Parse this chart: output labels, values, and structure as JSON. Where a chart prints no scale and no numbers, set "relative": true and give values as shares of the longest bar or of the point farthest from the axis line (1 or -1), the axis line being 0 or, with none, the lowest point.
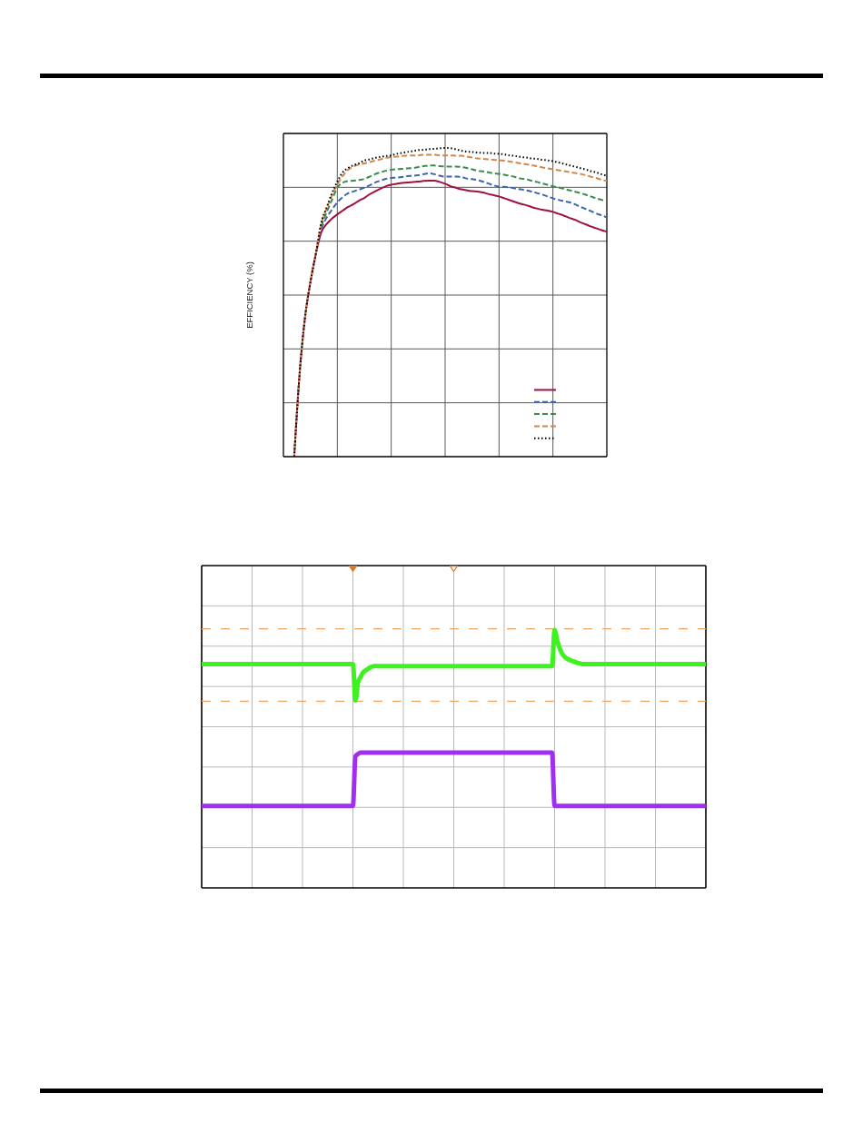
{
  "chart_data": [
    {
      "type": "line",
      "ylabel": "EFFICIENCY (%)",
      "relative": true,
      "grid": true,
      "categories": [
        null,
        null,
        null,
        null,
        null,
        null,
        null,
        null,
        null,
        null,
        null,
        null,
        null,
        null,
        null,
        null,
        null,
        null,
        null,
        null,
        null,
        null,
        null,
        null,
        null,
        null,
        null,
        null,
        null,
        null,
        null,
        null,
        null,
        null,
        null,
        null,
        null,
        null,
        null,
        null,
        null,
        null,
        null,
        null,
        null,
        null,
        null,
        null,
        null,
        null,
        null,
        null,
        null,
        null,
        null,
        null,
        null,
        null,
        null,
        null,
        null
      ],
      "series": [
        {
          "color": "#a01040",
          "line_style": "solid",
          "values": [
            null,
            null,
            0,
            0.268,
            0.45,
            0.565,
            0.656,
            0.726,
            0.753,
            0.771,
            0.785,
            0.797,
            0.809,
            0.818,
            0.829,
            0.838,
            0.85,
            0.859,
            0.868,
            0.876,
            0.881,
            0.884,
            0.887,
            0.888,
            0.89,
            0.891,
            0.893,
            0.894,
            0.894,
            0.89,
            0.884,
            0.876,
            0.871,
            0.866,
            0.863,
            0.86,
            0.859,
            0.856,
            0.851,
            0.847,
            0.843,
            0.837,
            0.831,
            0.825,
            0.819,
            0.815,
            0.809,
            0.804,
            0.8,
            0.797,
            0.793,
            0.787,
            0.781,
            0.774,
            0.768,
            0.76,
            0.753,
            0.746,
            0.74,
            0.734,
            0.729
          ]
        },
        {
          "color": "#3b64ad",
          "line_style": "dashed",
          "values": [
            null,
            null,
            null,
            null,
            null,
            null,
            null,
            0.738,
            0.774,
            0.8,
            0.824,
            0.841,
            0.853,
            0.859,
            0.865,
            0.871,
            0.879,
            0.888,
            0.894,
            0.9,
            0.903,
            0.904,
            0.906,
            0.909,
            0.91,
            0.912,
            0.915,
            0.918,
            0.915,
            0.91,
            0.907,
            0.907,
            0.907,
            0.906,
            0.901,
            0.899,
            0.896,
            0.891,
            0.885,
            0.879,
            0.875,
            0.874,
            0.872,
            0.869,
            0.866,
            0.863,
            0.859,
            0.854,
            0.849,
            0.843,
            0.837,
            0.832,
            0.828,
            0.824,
            0.818,
            0.81,
            0.803,
            0.796,
            0.788,
            0.782,
            0.775
          ]
        },
        {
          "color": "#3a8c4c",
          "line_style": "dashed",
          "values": [
            null,
            null,
            null,
            null,
            null,
            null,
            null,
            0.747,
            0.791,
            0.832,
            0.871,
            0.888,
            0.893,
            0.894,
            0.896,
            0.9,
            0.907,
            0.915,
            0.921,
            0.926,
            0.929,
            0.931,
            0.932,
            0.934,
            0.935,
            0.938,
            0.941,
            0.943,
            0.943,
            0.941,
            0.94,
            0.94,
            0.94,
            0.938,
            0.935,
            0.931,
            0.926,
            0.924,
            0.921,
            0.918,
            0.916,
            0.913,
            0.91,
            0.906,
            0.901,
            0.899,
            0.894,
            0.89,
            0.885,
            0.881,
            0.876,
            0.872,
            0.868,
            0.863,
            0.859,
            0.854,
            0.849,
            0.843,
            0.837,
            0.832,
            0.828
          ]
        },
        {
          "color": "#d2874c",
          "line_style": "dashed",
          "values": [
            null,
            null,
            0,
            0.268,
            0.45,
            0.565,
            0.656,
            0.753,
            0.803,
            0.847,
            0.882,
            0.909,
            0.929,
            0.94,
            0.946,
            0.95,
            0.954,
            0.959,
            0.963,
            0.968,
            0.971,
            0.972,
            0.974,
            0.975,
            0.976,
            0.976,
            0.978,
            0.978,
            0.978,
            0.976,
            0.976,
            0.976,
            0.975,
            0.975,
            0.972,
            0.969,
            0.966,
            0.965,
            0.963,
            0.962,
            0.96,
            0.959,
            0.956,
            0.953,
            0.95,
            0.947,
            0.944,
            0.941,
            0.937,
            0.934,
            0.931,
            0.928,
            0.925,
            0.922,
            0.919,
            0.916,
            0.912,
            0.907,
            0.903,
            0.897,
            0.893
          ]
        },
        {
          "color": "#000000",
          "line_style": "dotted",
          "values": [
            null,
            null,
            0,
            0.268,
            0.45,
            0.565,
            0.656,
            0.756,
            0.806,
            0.853,
            0.891,
            0.921,
            0.935,
            0.944,
            0.95,
            0.959,
            0.963,
            0.968,
            0.971,
            0.974,
            0.976,
            0.981,
            0.984,
            0.987,
            0.99,
            0.993,
            0.994,
            0.996,
            0.997,
            0.999,
            1,
            0.999,
            0.996,
            0.991,
            0.988,
            0.987,
            0.985,
            0.984,
            0.984,
            0.982,
            0.981,
            0.979,
            0.976,
            0.974,
            0.971,
            0.969,
            0.966,
            0.965,
            0.962,
            0.96,
            0.957,
            0.953,
            0.949,
            0.944,
            0.94,
            0.935,
            0.931,
            0.925,
            0.921,
            0.915,
            0.91
          ]
        }
      ]
    },
    {
      "type": "line",
      "relative": true,
      "grid": true,
      "categories": [
        null,
        null,
        null,
        null,
        null,
        null,
        null,
        null,
        null,
        null,
        null,
        null,
        null,
        null,
        null,
        null,
        null,
        null,
        null,
        null,
        null,
        null,
        null,
        null,
        null,
        null,
        null,
        null,
        null,
        null,
        null,
        null,
        null,
        null,
        null,
        null,
        null,
        null,
        null,
        null,
        null,
        null,
        null,
        null,
        null,
        null,
        null,
        null,
        null,
        null,
        null,
        null,
        null,
        null,
        null,
        null,
        null,
        null,
        null,
        null,
        null,
        null,
        null,
        null,
        null,
        null,
        null,
        null,
        null,
        null,
        null,
        null,
        null,
        null,
        null,
        null,
        null,
        null,
        null,
        null,
        null,
        null,
        null,
        null,
        null,
        null,
        null,
        null,
        null,
        null,
        null,
        null,
        null,
        null,
        null,
        null,
        null,
        null,
        null,
        null,
        null,
        null,
        null,
        null,
        null,
        null,
        null,
        null,
        null,
        null,
        null,
        null,
        null,
        null,
        null,
        null,
        null,
        null,
        null,
        null,
        null,
        null,
        null,
        null,
        null,
        null,
        null,
        null,
        null,
        null,
        null,
        null,
        null,
        null,
        null,
        null,
        null,
        null,
        null,
        null,
        null,
        null,
        null,
        null,
        null,
        null,
        null,
        null,
        null,
        null,
        null,
        null,
        null,
        null,
        null,
        null,
        null,
        null,
        null,
        null,
        null,
        null,
        null,
        null,
        null,
        null,
        null,
        null,
        null,
        null,
        null,
        null,
        null,
        null,
        null,
        null,
        null,
        null,
        null,
        null,
        null,
        null,
        null,
        null,
        null,
        null,
        null,
        null,
        null,
        null,
        null,
        null,
        null,
        null,
        null,
        null,
        null,
        null,
        null,
        null,
        null
      ],
      "series": [
        {
          "color": "#3ef21f",
          "values": [
            0.868,
            0.868,
            0.868,
            0.868,
            0.868,
            0.868,
            0.868,
            0.868,
            0.868,
            0.868,
            0.868,
            0.868,
            0.868,
            0.868,
            0.868,
            0.868,
            0.868,
            0.868,
            0.868,
            0.868,
            0.868,
            0.868,
            0.868,
            0.868,
            0.868,
            0.868,
            0.868,
            0.868,
            0.868,
            0.868,
            0.868,
            0.868,
            0.868,
            0.868,
            0.868,
            0.868,
            0.868,
            0.868,
            0.868,
            0.868,
            0.868,
            0.868,
            0.868,
            0.868,
            0.868,
            0.868,
            0.868,
            0.868,
            0.868,
            0.868,
            0.868,
            0.868,
            0.868,
            0.868,
            0.868,
            0.868,
            0.868,
            0.868,
            0.868,
            0.868,
            0.868,
            0.727,
            0.796,
            0.817,
            0.835,
            0.843,
            0.85,
            0.856,
            0.859,
            0.861,
            0.86,
            0.86,
            0.86,
            0.86,
            0.86,
            0.86,
            0.86,
            0.86,
            0.86,
            0.86,
            0.86,
            0.86,
            0.86,
            0.86,
            0.86,
            0.86,
            0.86,
            0.86,
            0.86,
            0.86,
            0.86,
            0.86,
            0.86,
            0.86,
            0.86,
            0.86,
            0.86,
            0.86,
            0.86,
            0.86,
            0.86,
            0.86,
            0.86,
            0.86,
            0.86,
            0.86,
            0.86,
            0.86,
            0.86,
            0.86,
            0.86,
            0.86,
            0.86,
            0.86,
            0.86,
            0.86,
            0.86,
            0.86,
            0.86,
            0.86,
            0.86,
            0.86,
            0.86,
            0.86,
            0.86,
            0.86,
            0.86,
            0.86,
            0.86,
            0.86,
            0.86,
            0.86,
            0.86,
            0.86,
            0.86,
            0.86,
            0.86,
            0.86,
            0.86,
            0.86,
            1,
            0.961,
            0.93,
            0.908,
            0.896,
            0.889,
            0.884,
            0.88,
            0.877,
            0.873,
            0.871,
            0.868,
            0.868,
            0.868,
            0.868,
            0.868,
            0.868,
            0.868,
            0.868,
            0.868,
            0.868,
            0.868,
            0.868,
            0.868,
            0.868,
            0.868,
            0.868,
            0.868,
            0.868,
            0.868,
            0.868,
            0.868,
            0.868,
            0.868,
            0.868,
            0.868,
            0.868,
            0.868,
            0.868,
            0.868,
            0.868,
            0.868,
            0.868,
            0.868,
            0.868,
            0.868,
            0.868,
            0.868,
            0.868,
            0.868,
            0.868,
            0.868,
            0.868,
            0.868,
            0.868,
            0.868,
            0.868,
            0.868,
            0.868,
            0.868,
            0.868
          ]
        },
        {
          "color": "#a12ff3",
          "values": [
            0.318,
            0.318,
            0.318,
            0.318,
            0.318,
            0.318,
            0.318,
            0.318,
            0.318,
            0.318,
            0.318,
            0.318,
            0.318,
            0.318,
            0.318,
            0.318,
            0.318,
            0.318,
            0.318,
            0.318,
            0.318,
            0.318,
            0.318,
            0.318,
            0.318,
            0.318,
            0.318,
            0.318,
            0.318,
            0.318,
            0.318,
            0.318,
            0.318,
            0.318,
            0.318,
            0.318,
            0.318,
            0.318,
            0.318,
            0.318,
            0.318,
            0.318,
            0.318,
            0.318,
            0.318,
            0.318,
            0.318,
            0.318,
            0.318,
            0.318,
            0.318,
            0.318,
            0.318,
            0.318,
            0.318,
            0.318,
            0.318,
            0.318,
            0.318,
            0.318,
            0.318,
            0.51,
            0.519,
            0.525,
            0.525,
            0.525,
            0.525,
            0.525,
            0.525,
            0.525,
            0.525,
            0.525,
            0.525,
            0.525,
            0.525,
            0.525,
            0.525,
            0.525,
            0.525,
            0.525,
            0.525,
            0.525,
            0.525,
            0.525,
            0.525,
            0.525,
            0.525,
            0.525,
            0.525,
            0.525,
            0.525,
            0.525,
            0.525,
            0.525,
            0.525,
            0.525,
            0.525,
            0.525,
            0.525,
            0.525,
            0.525,
            0.525,
            0.525,
            0.525,
            0.525,
            0.525,
            0.525,
            0.525,
            0.525,
            0.525,
            0.525,
            0.525,
            0.525,
            0.525,
            0.525,
            0.525,
            0.525,
            0.525,
            0.525,
            0.525,
            0.525,
            0.525,
            0.525,
            0.525,
            0.525,
            0.525,
            0.525,
            0.525,
            0.525,
            0.525,
            0.525,
            0.525,
            0.525,
            0.525,
            0.525,
            0.525,
            0.525,
            0.525,
            0.525,
            0.525,
            0.318,
            0.318,
            0.318,
            0.318,
            0.318,
            0.318,
            0.318,
            0.318,
            0.318,
            0.318,
            0.318,
            0.318,
            0.318,
            0.318,
            0.318,
            0.318,
            0.318,
            0.318,
            0.318,
            0.318,
            0.318,
            0.318,
            0.318,
            0.318,
            0.318,
            0.318,
            0.318,
            0.318,
            0.318,
            0.318,
            0.318,
            0.318,
            0.318,
            0.318,
            0.318,
            0.318,
            0.318,
            0.318,
            0.318,
            0.318,
            0.318,
            0.318,
            0.318,
            0.318,
            0.318,
            0.318,
            0.318,
            0.318,
            0.318,
            0.318,
            0.318,
            0.318,
            0.318,
            0.318,
            0.318,
            0.318,
            0.318,
            0.318,
            0.318,
            0.318,
            0.318
          ]
        }
      ],
      "ref_lines": [
        {
          "axis": "y",
          "value": 1.005,
          "color": "#f3a462",
          "line_style": "dashed"
        },
        {
          "axis": "y",
          "value": 0.724,
          "color": "#f3a462",
          "line_style": "dashed"
        }
      ]
    }
  ]
}
